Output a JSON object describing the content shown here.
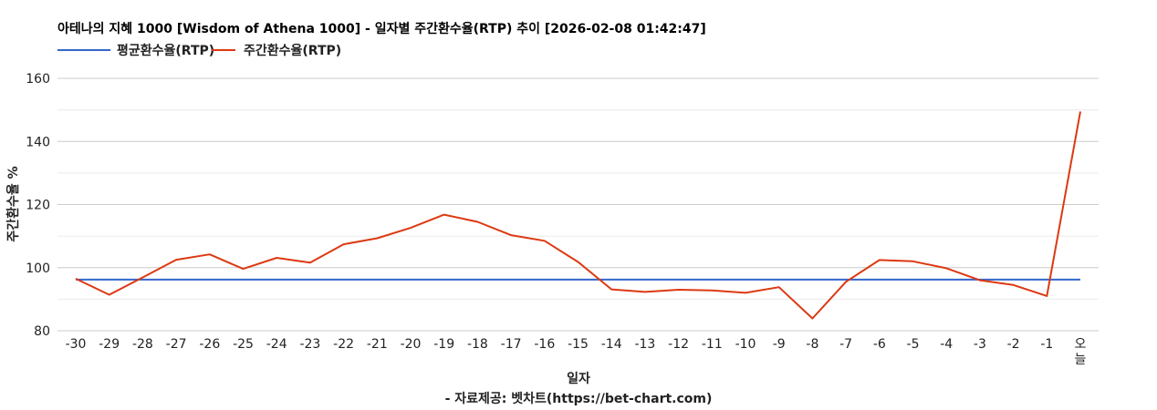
{
  "chart_data": {
    "type": "line",
    "title": "아테나의 지혜 1000 [Wisdom of Athena 1000] - 일자별 주간환수율(RTP) 추이 [2026-02-08 01:42:47]",
    "xlabel": "일자",
    "ylabel": "주간환수율 %",
    "source": "- 자료제공: 벳차트(https://bet-chart.com)",
    "categories": [
      "-30",
      "-29",
      "-28",
      "-27",
      "-26",
      "-25",
      "-24",
      "-23",
      "-22",
      "-21",
      "-20",
      "-19",
      "-18",
      "-17",
      "-16",
      "-15",
      "-14",
      "-13",
      "-12",
      "-11",
      "-10",
      "-9",
      "-8",
      "-7",
      "-6",
      "-5",
      "-4",
      "-3",
      "-2",
      "-1",
      "오늘"
    ],
    "ylim": [
      80,
      160
    ],
    "yticks": [
      "80",
      "100",
      "120",
      "140",
      "160"
    ],
    "grid": true,
    "legend_position": "top-left",
    "series": [
      {
        "name": "평균환수율(RTP)",
        "color": "#3366cc",
        "values": [
          96.2,
          96.2,
          96.2,
          96.2,
          96.2,
          96.2,
          96.2,
          96.2,
          96.2,
          96.2,
          96.2,
          96.2,
          96.2,
          96.2,
          96.2,
          96.2,
          96.2,
          96.2,
          96.2,
          96.2,
          96.2,
          96.2,
          96.2,
          96.2,
          96.2,
          96.2,
          96.2,
          96.2,
          96.2,
          96.2,
          96.2
        ]
      },
      {
        "name": "주간환수율(RTP)",
        "color": "#dc3912",
        "values": [
          96.5,
          91.4,
          96.9,
          102.5,
          104.2,
          99.6,
          103.1,
          101.6,
          107.4,
          109.3,
          112.6,
          116.8,
          114.5,
          110.3,
          108.5,
          101.8,
          93.1,
          92.3,
          93.0,
          92.8,
          92.0,
          93.8,
          83.9,
          95.5,
          102.4,
          102.0,
          99.8,
          96.0,
          94.5,
          91.0,
          149.5
        ]
      }
    ]
  }
}
